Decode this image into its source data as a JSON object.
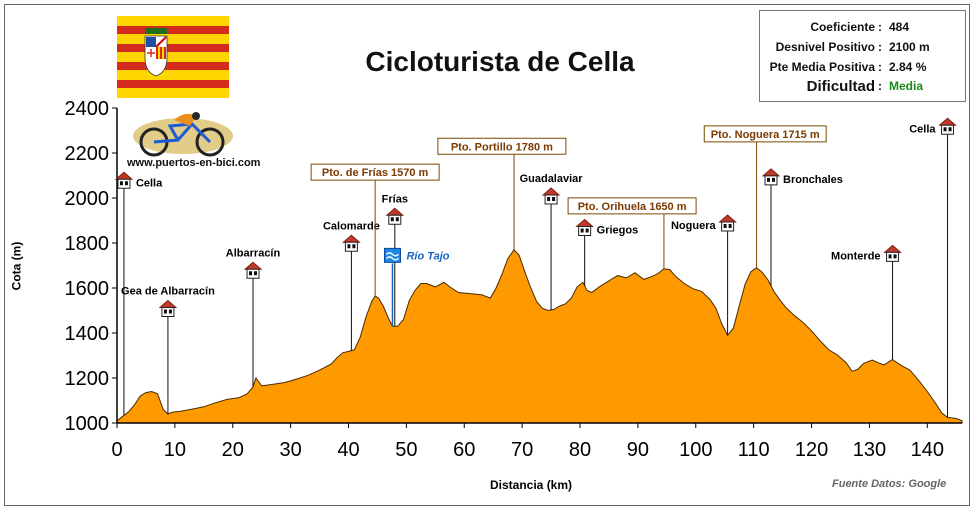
{
  "colors": {
    "fill": "#FF9900",
    "outline": "#4a2a00",
    "box_border": "#7a4a00",
    "box_text": "#7a3a00",
    "river": "#1565c0",
    "green": "#1a8c1a"
  },
  "header": {
    "title": "Cicloturista de Cella"
  },
  "info": {
    "rows": [
      {
        "label": "Coeficiente",
        "value": "484"
      },
      {
        "label": "Desnivel Positivo",
        "value": "2100 m"
      },
      {
        "label": "Pte Media Positiva",
        "value": "2.84 %"
      }
    ],
    "difficulty_label": "Dificultad",
    "difficulty_value": "Media"
  },
  "watermark": "www.puertos-en-bici.com",
  "source": "Fuente Datos: Google",
  "chart_data": {
    "type": "area",
    "title": "Cicloturista de Cella",
    "xlabel": "Distancia (km)",
    "ylabel": "Cota (m)",
    "xlim": [
      0,
      146
    ],
    "ylim": [
      1000,
      2400
    ],
    "xticks": [
      0,
      10,
      20,
      30,
      40,
      50,
      60,
      70,
      80,
      90,
      100,
      110,
      120,
      130,
      140
    ],
    "yticks": [
      1000,
      1200,
      1400,
      1600,
      1800,
      2000,
      2200,
      2400
    ],
    "profile": [
      [
        0,
        1010
      ],
      [
        1,
        1030
      ],
      [
        2,
        1050
      ],
      [
        3,
        1080
      ],
      [
        4,
        1120
      ],
      [
        5,
        1135
      ],
      [
        6,
        1140
      ],
      [
        7,
        1130
      ],
      [
        8,
        1060
      ],
      [
        8.8,
        1040
      ],
      [
        9.5,
        1048
      ],
      [
        11,
        1052
      ],
      [
        13,
        1062
      ],
      [
        15,
        1072
      ],
      [
        17,
        1090
      ],
      [
        19,
        1105
      ],
      [
        21,
        1112
      ],
      [
        22.5,
        1130
      ],
      [
        23.5,
        1160
      ],
      [
        24,
        1200
      ],
      [
        25,
        1165
      ],
      [
        27,
        1172
      ],
      [
        29,
        1180
      ],
      [
        31,
        1195
      ],
      [
        33,
        1212
      ],
      [
        35,
        1235
      ],
      [
        37,
        1262
      ],
      [
        38,
        1290
      ],
      [
        39,
        1312
      ],
      [
        40,
        1318
      ],
      [
        41,
        1325
      ],
      [
        42,
        1380
      ],
      [
        43,
        1470
      ],
      [
        44,
        1540
      ],
      [
        44.6,
        1565
      ],
      [
        45.2,
        1555
      ],
      [
        46,
        1520
      ],
      [
        47,
        1460
      ],
      [
        47.6,
        1430
      ],
      [
        48.5,
        1430
      ],
      [
        49.5,
        1460
      ],
      [
        50.5,
        1545
      ],
      [
        51.5,
        1590
      ],
      [
        52.5,
        1620
      ],
      [
        53.5,
        1620
      ],
      [
        55,
        1605
      ],
      [
        56.5,
        1625
      ],
      [
        57.5,
        1605
      ],
      [
        59,
        1580
      ],
      [
        61,
        1575
      ],
      [
        63,
        1570
      ],
      [
        64.5,
        1555
      ],
      [
        65.5,
        1600
      ],
      [
        66.5,
        1660
      ],
      [
        67.5,
        1730
      ],
      [
        68.6,
        1770
      ],
      [
        69.5,
        1745
      ],
      [
        70.5,
        1670
      ],
      [
        71.5,
        1600
      ],
      [
        72.5,
        1540
      ],
      [
        73.5,
        1510
      ],
      [
        74.5,
        1500
      ],
      [
        75.5,
        1505
      ],
      [
        76.5,
        1520
      ],
      [
        77.5,
        1530
      ],
      [
        78.5,
        1555
      ],
      [
        79.5,
        1605
      ],
      [
        80.5,
        1625
      ],
      [
        81.2,
        1590
      ],
      [
        82,
        1580
      ],
      [
        83.5,
        1608
      ],
      [
        85,
        1632
      ],
      [
        86.5,
        1655
      ],
      [
        88,
        1645
      ],
      [
        89.5,
        1668
      ],
      [
        91,
        1638
      ],
      [
        92.5,
        1652
      ],
      [
        93.5,
        1665
      ],
      [
        94.5,
        1685
      ],
      [
        95.5,
        1682
      ],
      [
        96.5,
        1652
      ],
      [
        98,
        1620
      ],
      [
        99.5,
        1597
      ],
      [
        101,
        1585
      ],
      [
        102.5,
        1548
      ],
      [
        103.5,
        1510
      ],
      [
        104.5,
        1440
      ],
      [
        105.5,
        1390
      ],
      [
        106.5,
        1422
      ],
      [
        107.5,
        1520
      ],
      [
        108.5,
        1615
      ],
      [
        109.5,
        1672
      ],
      [
        110.5,
        1690
      ],
      [
        111.5,
        1670
      ],
      [
        112.5,
        1635
      ],
      [
        113.5,
        1585
      ],
      [
        114.5,
        1548
      ],
      [
        115.5,
        1515
      ],
      [
        117,
        1478
      ],
      [
        118.5,
        1448
      ],
      [
        120,
        1410
      ],
      [
        121.5,
        1365
      ],
      [
        123,
        1325
      ],
      [
        124.5,
        1302
      ],
      [
        126,
        1268
      ],
      [
        127,
        1230
      ],
      [
        128,
        1238
      ],
      [
        129,
        1265
      ],
      [
        130.5,
        1280
      ],
      [
        131.5,
        1268
      ],
      [
        132.5,
        1258
      ],
      [
        134,
        1282
      ],
      [
        135.5,
        1256
      ],
      [
        137,
        1235
      ],
      [
        138.5,
        1190
      ],
      [
        140,
        1140
      ],
      [
        141.5,
        1085
      ],
      [
        142.5,
        1045
      ],
      [
        143.5,
        1025
      ],
      [
        145,
        1020
      ],
      [
        146,
        1010
      ]
    ],
    "towns": [
      {
        "name": "Cella",
        "km": 1.2,
        "label_y": 2070,
        "marker_y": 2070,
        "side": "right"
      },
      {
        "name": "Gea de Albarracín",
        "km": 8.8,
        "label_y": 1560,
        "marker_y": 1500,
        "side": "top"
      },
      {
        "name": "Albarracín",
        "km": 23.5,
        "label_y": 1730,
        "marker_y": 1670,
        "side": "top"
      },
      {
        "name": "Calomarde",
        "km": 40.5,
        "label_y": 1850,
        "marker_y": 1790,
        "side": "top"
      },
      {
        "name": "Frías",
        "km": 48,
        "label_y": 1970,
        "marker_y": 1910,
        "side": "top"
      },
      {
        "name": "Guadalaviar",
        "km": 75,
        "label_y": 2060,
        "marker_y": 2000,
        "side": "top"
      },
      {
        "name": "Griegos",
        "km": 80.8,
        "label_y": 1860,
        "marker_y": 1860,
        "side": "right"
      },
      {
        "name": "Noguera",
        "km": 105.5,
        "label_y": 1880,
        "marker_y": 1880,
        "side": "left"
      },
      {
        "name": "Bronchales",
        "km": 113,
        "label_y": 2085,
        "marker_y": 2085,
        "side": "right"
      },
      {
        "name": "Monterde",
        "km": 134,
        "label_y": 1745,
        "marker_y": 1745,
        "side": "left"
      },
      {
        "name": "Cella",
        "km": 143.5,
        "label_y": 2320,
        "marker_y": 2310,
        "side": "left"
      }
    ],
    "passes": [
      {
        "label": "Pto. de Frías 1570 m",
        "km": 44.6,
        "box_km": 44.6,
        "box_y": 2115
      },
      {
        "label": "Pto. Portillo 1780 m",
        "km": 68.6,
        "box_km": 66.5,
        "box_y": 2230
      },
      {
        "label": "Pto. Orihuela 1650 m",
        "km": 94.5,
        "box_km": 89,
        "box_y": 1965
      },
      {
        "label": "Pto. Noguera 1715 m",
        "km": 110.5,
        "box_km": 112,
        "box_y": 2285
      }
    ],
    "river": {
      "name": "Río Tajo",
      "km": 47.6,
      "icon_y": 1745
    }
  }
}
